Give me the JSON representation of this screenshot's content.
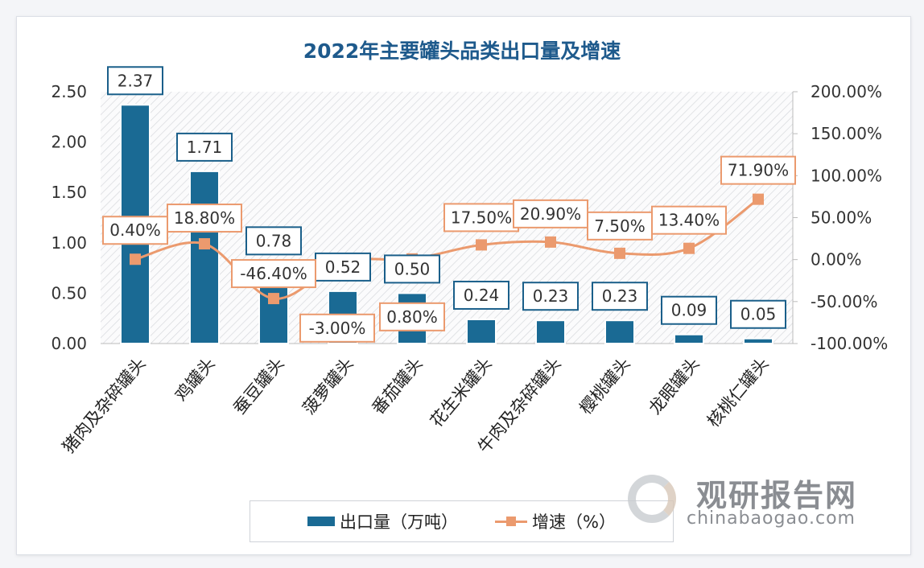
{
  "chart_data": {
    "type": "bar+line",
    "title": "2022年主要罐头品类出口量及增速",
    "categories": [
      "猪肉及杂碎罐头",
      "鸡罐头",
      "蚕豆罐头",
      "菠萝罐头",
      "番茄罐头",
      "花生米罐头",
      "牛肉及杂碎罐头",
      "樱桃罐头",
      "龙眼罐头",
      "核桃仁罐头"
    ],
    "series": [
      {
        "name": "出口量（万吨）",
        "type": "bar",
        "axis": "left",
        "color": "#1a6a94",
        "values": [
          2.37,
          1.71,
          0.78,
          0.52,
          0.5,
          0.24,
          0.23,
          0.23,
          0.09,
          0.05
        ],
        "labels": [
          "2.37",
          "1.71",
          "0.78",
          "0.52",
          "0.50",
          "0.24",
          "0.23",
          "0.23",
          "0.09",
          "0.05"
        ]
      },
      {
        "name": "增速（%）",
        "type": "line",
        "axis": "right",
        "color": "#eb9a6e",
        "values": [
          0.4,
          18.8,
          -46.4,
          -3.0,
          0.8,
          17.5,
          20.9,
          7.5,
          13.4,
          71.9
        ],
        "labels": [
          "0.40%",
          "18.80%",
          "-46.40%",
          "-3.00%",
          "0.80%",
          "17.50%",
          "20.90%",
          "7.50%",
          "13.40%",
          "71.90%"
        ]
      }
    ],
    "left_axis": {
      "ylim": [
        0,
        2.5
      ],
      "ticks": [
        "0.00",
        "0.50",
        "1.00",
        "1.50",
        "2.00",
        "2.50"
      ]
    },
    "right_axis": {
      "ylim": [
        -100,
        200
      ],
      "ticks": [
        "-100.00%",
        "-50.00%",
        "0.00%",
        "50.00%",
        "100.00%",
        "150.00%",
        "200.00%"
      ]
    },
    "grid": false,
    "legend": "bottom"
  },
  "legend": {
    "bar_label": "出口量（万吨）",
    "line_label": "增速（%）"
  },
  "watermark": {
    "cn": "观研报告网",
    "en": "chinabaogao.com"
  }
}
